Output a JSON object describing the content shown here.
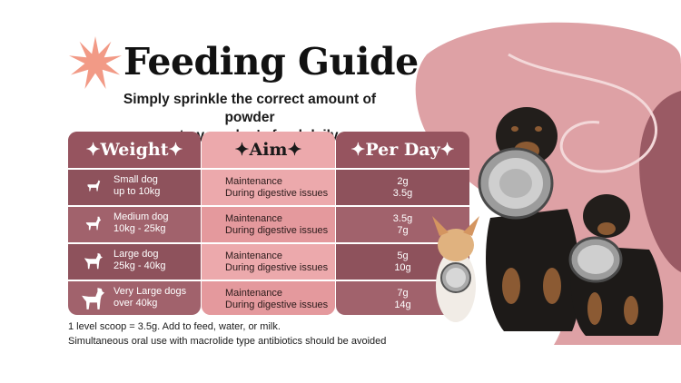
{
  "header": {
    "title": "Feeding Guide",
    "subtitle_line1": "Simply sprinkle the correct amount of powder",
    "subtitle_line2": "on to your dog's food daily."
  },
  "table": {
    "columns": [
      "✦Weight✦",
      "✦Aim✦",
      "✦Per Day✦"
    ],
    "rows": [
      {
        "size": "Small dog",
        "range": "up to 10kg",
        "aim1": "Maintenance",
        "aim2": "During digestive issues",
        "day1": "2g",
        "day2": "3.5g",
        "icon": "small-dog-icon"
      },
      {
        "size": "Medium dog",
        "range": "10kg - 25kg",
        "aim1": "Maintenance",
        "aim2": "During digestive issues",
        "day1": "3.5g",
        "day2": "7g",
        "icon": "medium-dog-icon"
      },
      {
        "size": "Large dog",
        "range": "25kg - 40kg",
        "aim1": "Maintenance",
        "aim2": "During digestive issues",
        "day1": "5g",
        "day2": "10g",
        "icon": "large-dog-icon"
      },
      {
        "size": "Very Large dogs",
        "range": "over 40kg",
        "aim1": "Maintenance",
        "aim2": "During digestive issues",
        "day1": "7g",
        "day2": "14g",
        "icon": "very-large-dog-icon"
      }
    ]
  },
  "notes": {
    "line1": "1 level scoop = 3.5g. Add to feed, water, or milk.",
    "line2": "Simultaneous oral use with macrolide type antibiotics should be avoided"
  },
  "colors": {
    "dark_column": "#a1626c",
    "light_column": "#eca9ac",
    "blob": "#dea1a5",
    "burst": "#f29a86"
  }
}
